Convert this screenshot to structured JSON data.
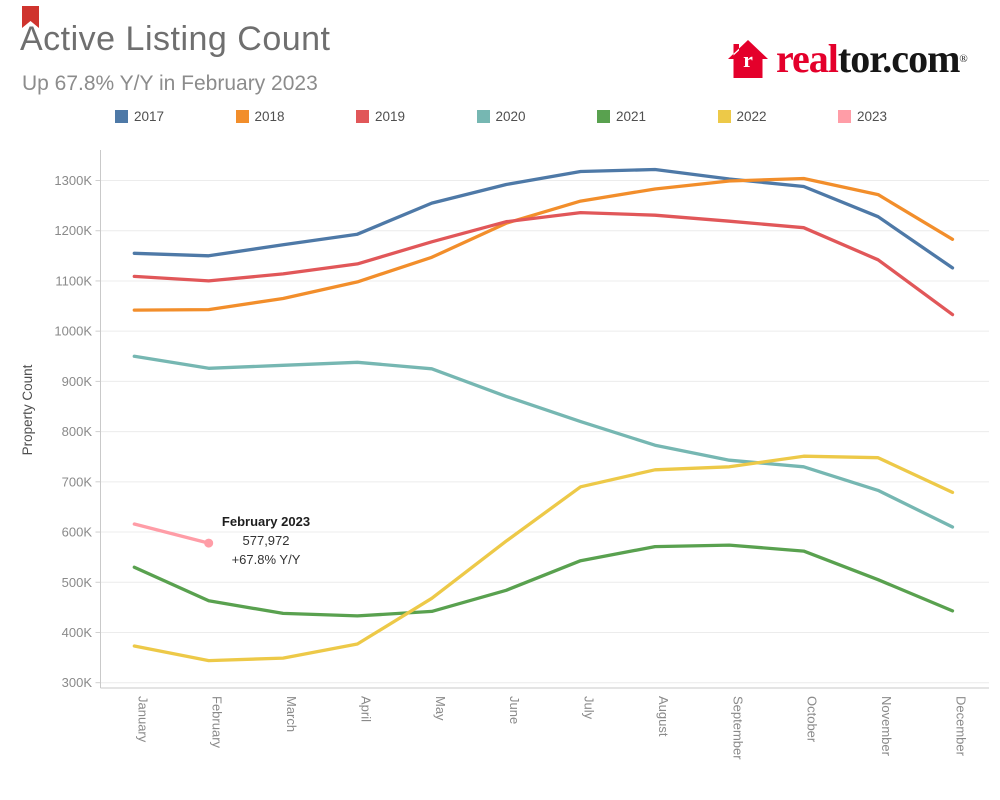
{
  "page": {
    "title": "Active Listing Count",
    "subtitle": "Up 67.8% Y/Y in February 2023"
  },
  "pin_icon": {
    "name": "red-bookmark-icon",
    "color": "#cf342e"
  },
  "logo": {
    "brand_red": "real",
    "brand_black": "tor.com",
    "registered": "®",
    "house_icon_color": "#e4002b",
    "house_letter": "r"
  },
  "legend": [
    {
      "label": "2017",
      "color": "#4e79a7"
    },
    {
      "label": "2018",
      "color": "#f28e2b"
    },
    {
      "label": "2019",
      "color": "#e15759"
    },
    {
      "label": "2020",
      "color": "#76b7b2"
    },
    {
      "label": "2021",
      "color": "#59a14f"
    },
    {
      "label": "2022",
      "color": "#edc948"
    },
    {
      "label": "2023",
      "color": "#ff9da7"
    }
  ],
  "chart_data": {
    "type": "line",
    "title": "Active Listing Count",
    "xlabel": "",
    "ylabel": "Property Count",
    "units": "thousands of properties (K)",
    "categories": [
      "January",
      "February",
      "March",
      "April",
      "May",
      "June",
      "July",
      "August",
      "September",
      "October",
      "November",
      "December"
    ],
    "y_ticks": [
      300,
      400,
      500,
      600,
      700,
      800,
      900,
      1000,
      1100,
      1200,
      1300
    ],
    "y_tick_labels": [
      "300K",
      "400K",
      "500K",
      "600K",
      "700K",
      "800K",
      "900K",
      "1000K",
      "1100K",
      "1200K",
      "1300K"
    ],
    "ylim": [
      300,
      1300
    ],
    "grid": "horizontal-only",
    "legend_position": "top",
    "series": [
      {
        "name": "2017",
        "color": "#4e79a7",
        "values": [
          1155,
          1150,
          1172,
          1193,
          1255,
          1292,
          1318,
          1322,
          1303,
          1288,
          1228,
          1126
        ]
      },
      {
        "name": "2018",
        "color": "#f28e2b",
        "values": [
          1042,
          1043,
          1065,
          1098,
          1147,
          1215,
          1259,
          1283,
          1299,
          1304,
          1272,
          1183
        ]
      },
      {
        "name": "2019",
        "color": "#e15759",
        "values": [
          1109,
          1100,
          1114,
          1134,
          1178,
          1218,
          1236,
          1231,
          1219,
          1206,
          1142,
          1033
        ]
      },
      {
        "name": "2020",
        "color": "#76b7b2",
        "values": [
          950,
          926,
          932,
          938,
          925,
          870,
          820,
          773,
          743,
          730,
          683,
          610
        ]
      },
      {
        "name": "2021",
        "color": "#59a14f",
        "values": [
          530,
          463,
          438,
          433,
          442,
          484,
          543,
          571,
          574,
          562,
          505,
          443
        ]
      },
      {
        "name": "2022",
        "color": "#edc948",
        "values": [
          373,
          344,
          349,
          377,
          468,
          582,
          690,
          724,
          730,
          751,
          748,
          679
        ]
      },
      {
        "name": "2023",
        "color": "#ff9da7",
        "values": [
          616,
          578
        ]
      }
    ],
    "annotation": {
      "label": "February 2023",
      "value": "577,972",
      "change": "+67.8% Y/Y"
    }
  }
}
